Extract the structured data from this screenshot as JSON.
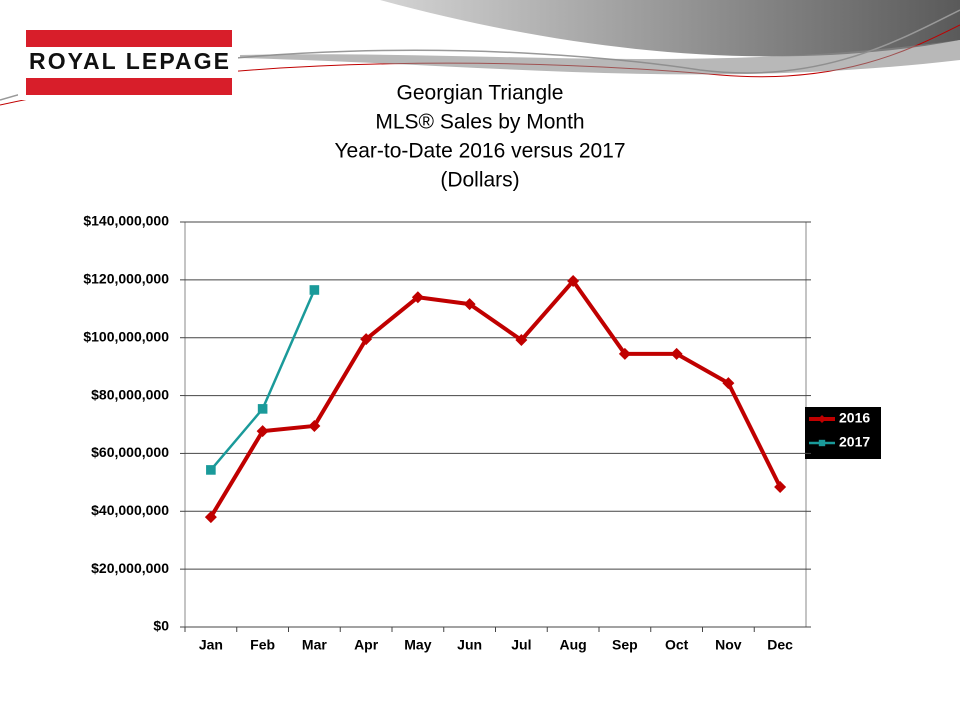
{
  "logo": "ROYAL LEPAGE",
  "chart_data": {
    "type": "line",
    "title": [
      "Georgian Triangle",
      "MLS® Sales by Month",
      "Year-to-Date 2016 versus 2017",
      "(Dollars)"
    ],
    "categories": [
      "Jan",
      "Feb",
      "Mar",
      "Apr",
      "May",
      "Jun",
      "Jul",
      "Aug",
      "Sep",
      "Oct",
      "Nov",
      "Dec"
    ],
    "series": [
      {
        "name": "2016",
        "color": "#c00000",
        "marker": "diamond",
        "values": [
          38000000,
          67700000,
          69500000,
          99500000,
          114000000,
          111600000,
          99200000,
          119600000,
          94400000,
          94400000,
          84300000,
          48400000
        ]
      },
      {
        "name": "2017",
        "color": "#1a9a9a",
        "marker": "square",
        "values": [
          54300000,
          75400000,
          116500000,
          null,
          null,
          null,
          null,
          null,
          null,
          null,
          null,
          null
        ]
      }
    ],
    "ylim": [
      0,
      140000000
    ],
    "yticks": [
      {
        "value": 0,
        "label": "$0"
      },
      {
        "value": 20000000,
        "label": "$20,000,000"
      },
      {
        "value": 40000000,
        "label": "$40,000,000"
      },
      {
        "value": 60000000,
        "label": "$60,000,000"
      },
      {
        "value": 80000000,
        "label": "$80,000,000"
      },
      {
        "value": 100000000,
        "label": "$100,000,000"
      },
      {
        "value": 120000000,
        "label": "$120,000,000"
      },
      {
        "value": 140000000,
        "label": "$140,000,000"
      }
    ],
    "grid": true,
    "legend": "right"
  }
}
